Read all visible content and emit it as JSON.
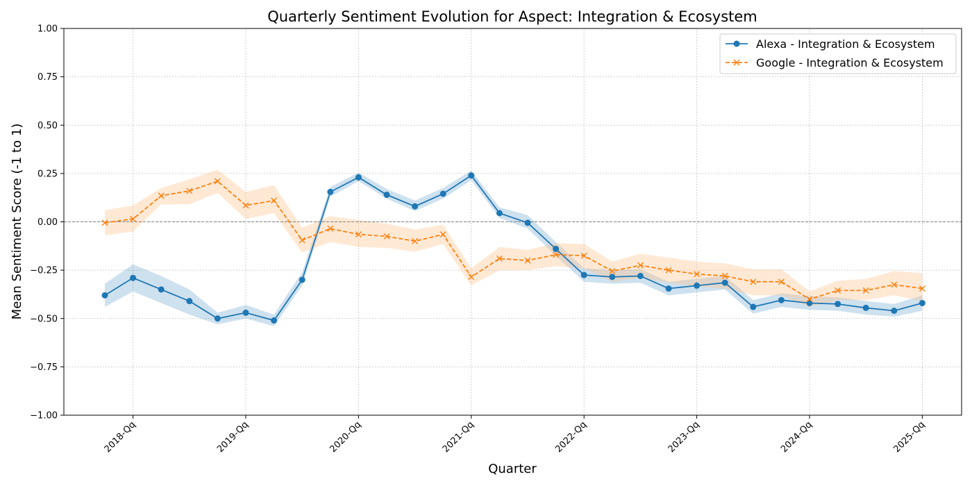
{
  "chart_data": {
    "type": "line",
    "title": "Quarterly Sentiment Evolution for Aspect: Integration & Ecosystem",
    "xlabel": "Quarter",
    "ylabel": "Mean Sentiment Score (-1 to 1)",
    "ylim": [
      -1.0,
      1.0
    ],
    "yticks": [
      -1.0,
      -0.75,
      -0.5,
      -0.25,
      0.0,
      0.25,
      0.5,
      0.75,
      1.0
    ],
    "ytick_labels": [
      "−1.00",
      "−0.75",
      "−0.50",
      "−0.25",
      "0.00",
      "0.25",
      "0.50",
      "0.75",
      "1.00"
    ],
    "xtick_labels": [
      "2018-Qq",
      "2019-Qq",
      "2020-Qq",
      "2021-Qq",
      "2022-Qq",
      "2023-Qq",
      "2024-Qq",
      "2025-Qq"
    ],
    "x": [
      "2017-Q4",
      "2018-Q1",
      "2018-Q2",
      "2018-Q3",
      "2018-Q4",
      "2019-Q1",
      "2019-Q2",
      "2019-Q3",
      "2019-Q4",
      "2020-Q1",
      "2020-Q2",
      "2020-Q3",
      "2020-Q4",
      "2021-Q1",
      "2021-Q2",
      "2021-Q3",
      "2021-Q4",
      "2022-Q1",
      "2022-Q2",
      "2022-Q3",
      "2022-Q4",
      "2023-Q1",
      "2023-Q2",
      "2023-Q3",
      "2023-Q4",
      "2024-Q1",
      "2024-Q2",
      "2024-Q3",
      "2024-Q4",
      "2025-Q1"
    ],
    "grid": true,
    "reference_line": 0.0,
    "legend_position": "top-right",
    "series": [
      {
        "name": "Alexa - Integration & Ecosystem",
        "color": "#1f77b4",
        "band_color": "#1f77b4",
        "linestyle": "solid",
        "marker": "circle",
        "values": [
          -0.38,
          -0.29,
          -0.35,
          -0.41,
          -0.5,
          -0.47,
          -0.51,
          -0.3,
          0.155,
          0.23,
          0.14,
          0.08,
          0.145,
          0.24,
          0.045,
          -0.005,
          -0.14,
          -0.275,
          -0.285,
          -0.28,
          -0.345,
          -0.33,
          -0.315,
          -0.44,
          -0.405,
          -0.42,
          -0.425,
          -0.445,
          -0.46,
          -0.42
        ],
        "lower": [
          -0.44,
          -0.36,
          -0.42,
          -0.48,
          -0.53,
          -0.5,
          -0.54,
          -0.33,
          0.13,
          0.21,
          0.12,
          0.055,
          0.12,
          0.215,
          0.02,
          -0.035,
          -0.175,
          -0.31,
          -0.32,
          -0.315,
          -0.38,
          -0.365,
          -0.35,
          -0.475,
          -0.44,
          -0.455,
          -0.46,
          -0.48,
          -0.49,
          -0.46
        ],
        "upper": [
          -0.32,
          -0.22,
          -0.28,
          -0.35,
          -0.47,
          -0.43,
          -0.48,
          -0.26,
          0.18,
          0.255,
          0.17,
          0.11,
          0.175,
          0.265,
          0.075,
          0.035,
          -0.105,
          -0.24,
          -0.25,
          -0.245,
          -0.31,
          -0.295,
          -0.28,
          -0.405,
          -0.37,
          -0.385,
          -0.39,
          -0.41,
          -0.425,
          -0.38
        ]
      },
      {
        "name": "Google - Integration & Ecosystem",
        "color": "#ff7f0e",
        "band_color": "#ffbf87",
        "linestyle": "dashed",
        "marker": "x",
        "values": [
          -0.005,
          0.015,
          0.135,
          0.16,
          0.21,
          0.085,
          0.11,
          -0.095,
          -0.035,
          -0.065,
          -0.075,
          -0.1,
          -0.065,
          -0.285,
          -0.19,
          -0.2,
          -0.17,
          -0.175,
          -0.255,
          -0.225,
          -0.25,
          -0.27,
          -0.28,
          -0.31,
          -0.31,
          -0.4,
          -0.355,
          -0.355,
          -0.325,
          -0.345
        ],
        "lower": [
          -0.07,
          -0.05,
          0.09,
          0.09,
          0.15,
          0.015,
          0.045,
          -0.16,
          -0.105,
          -0.13,
          -0.135,
          -0.155,
          -0.115,
          -0.33,
          -0.25,
          -0.25,
          -0.23,
          -0.24,
          -0.31,
          -0.29,
          -0.315,
          -0.335,
          -0.345,
          -0.38,
          -0.38,
          -0.44,
          -0.405,
          -0.405,
          -0.38,
          -0.41
        ],
        "upper": [
          0.06,
          0.085,
          0.175,
          0.22,
          0.27,
          0.155,
          0.19,
          -0.03,
          0.03,
          0.01,
          -0.01,
          -0.04,
          -0.015,
          -0.24,
          -0.13,
          -0.145,
          -0.11,
          -0.115,
          -0.205,
          -0.165,
          -0.185,
          -0.205,
          -0.215,
          -0.245,
          -0.245,
          -0.36,
          -0.305,
          -0.295,
          -0.255,
          -0.265
        ]
      }
    ]
  }
}
